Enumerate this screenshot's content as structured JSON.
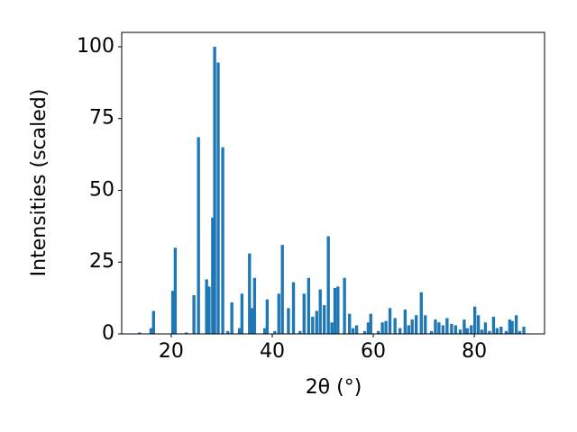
{
  "chart_data": {
    "type": "bar",
    "xlabel": "2θ (°)",
    "ylabel": "Intensities (scaled)",
    "color": "#1f77b4",
    "x": [
      13.7,
      16.0,
      16.5,
      20.3,
      20.8,
      23.0,
      24.5,
      25.4,
      27.0,
      27.5,
      28.2,
      28.6,
      29.3,
      30.2,
      31.2,
      32.0,
      33.5,
      34.0,
      35.5,
      36.0,
      36.5,
      38.5,
      39.0,
      40.5,
      41.3,
      42.0,
      43.2,
      44.2,
      45.5,
      46.3,
      47.2,
      48.0,
      48.8,
      49.5,
      50.3,
      51.1,
      51.8,
      52.4,
      53.0,
      54.3,
      55.3,
      56.0,
      56.7,
      58.3,
      59.0,
      59.5,
      61.0,
      61.8,
      62.5,
      63.3,
      64.3,
      65.3,
      66.3,
      67.0,
      67.7,
      68.5,
      69.5,
      70.3,
      71.5,
      72.3,
      73.0,
      73.8,
      74.6,
      75.5,
      76.3,
      77.2,
      78.0,
      78.6,
      79.4,
      80.1,
      80.8,
      81.5,
      82.2,
      83.0,
      83.8,
      84.5,
      85.3,
      86.3,
      87.0,
      87.5,
      88.3,
      89.0,
      89.8
    ],
    "values": [
      0.5,
      2,
      8,
      15,
      30,
      0.5,
      13.5,
      68.5,
      19,
      16.5,
      40.5,
      100,
      94.5,
      65,
      1,
      11,
      2,
      14,
      28,
      9,
      19.5,
      2,
      12,
      1,
      14,
      31,
      9,
      18,
      1,
      14,
      19.5,
      6,
      8,
      15.5,
      10,
      34,
      4,
      16,
      16.5,
      19.5,
      7,
      2,
      3,
      1,
      4,
      7,
      1,
      4,
      4.5,
      9,
      5.5,
      2,
      8.5,
      3,
      5,
      6.5,
      14.5,
      6.5,
      1,
      5,
      4,
      3,
      5.5,
      3.5,
      3,
      1.5,
      5,
      2,
      3,
      9.5,
      6.5,
      1.5,
      4,
      1,
      6,
      2,
      2.5,
      1,
      5,
      4.5,
      6.5,
      1,
      2.5
    ],
    "xlim": [
      10.2,
      93.9
    ],
    "xticks": [
      20,
      40,
      60,
      80
    ],
    "ylim": [
      0,
      105
    ],
    "yticks": [
      0,
      25,
      50,
      75,
      100
    ]
  }
}
